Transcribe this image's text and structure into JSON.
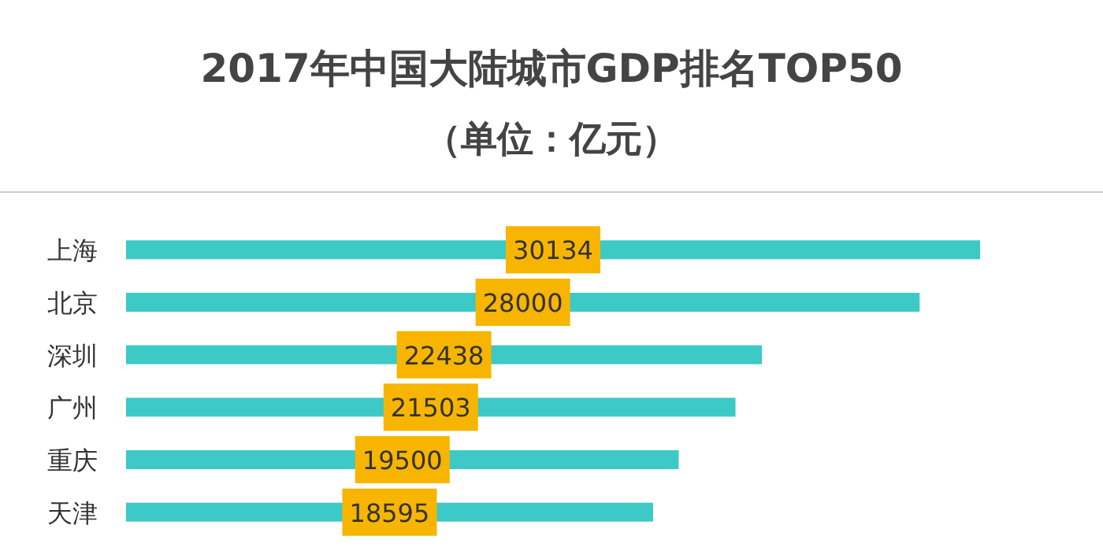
{
  "chart_data": {
    "type": "bar",
    "orientation": "horizontal",
    "title": "2017年中国大陆城市GDP排名TOP50",
    "subtitle": "（单位：亿元）",
    "categories": [
      "上海",
      "北京",
      "深圳",
      "广州",
      "重庆",
      "天津"
    ],
    "values": [
      30134,
      28000,
      22438,
      21503,
      19500,
      18595
    ],
    "color": "#3dc9c6",
    "data_labels": true
  }
}
